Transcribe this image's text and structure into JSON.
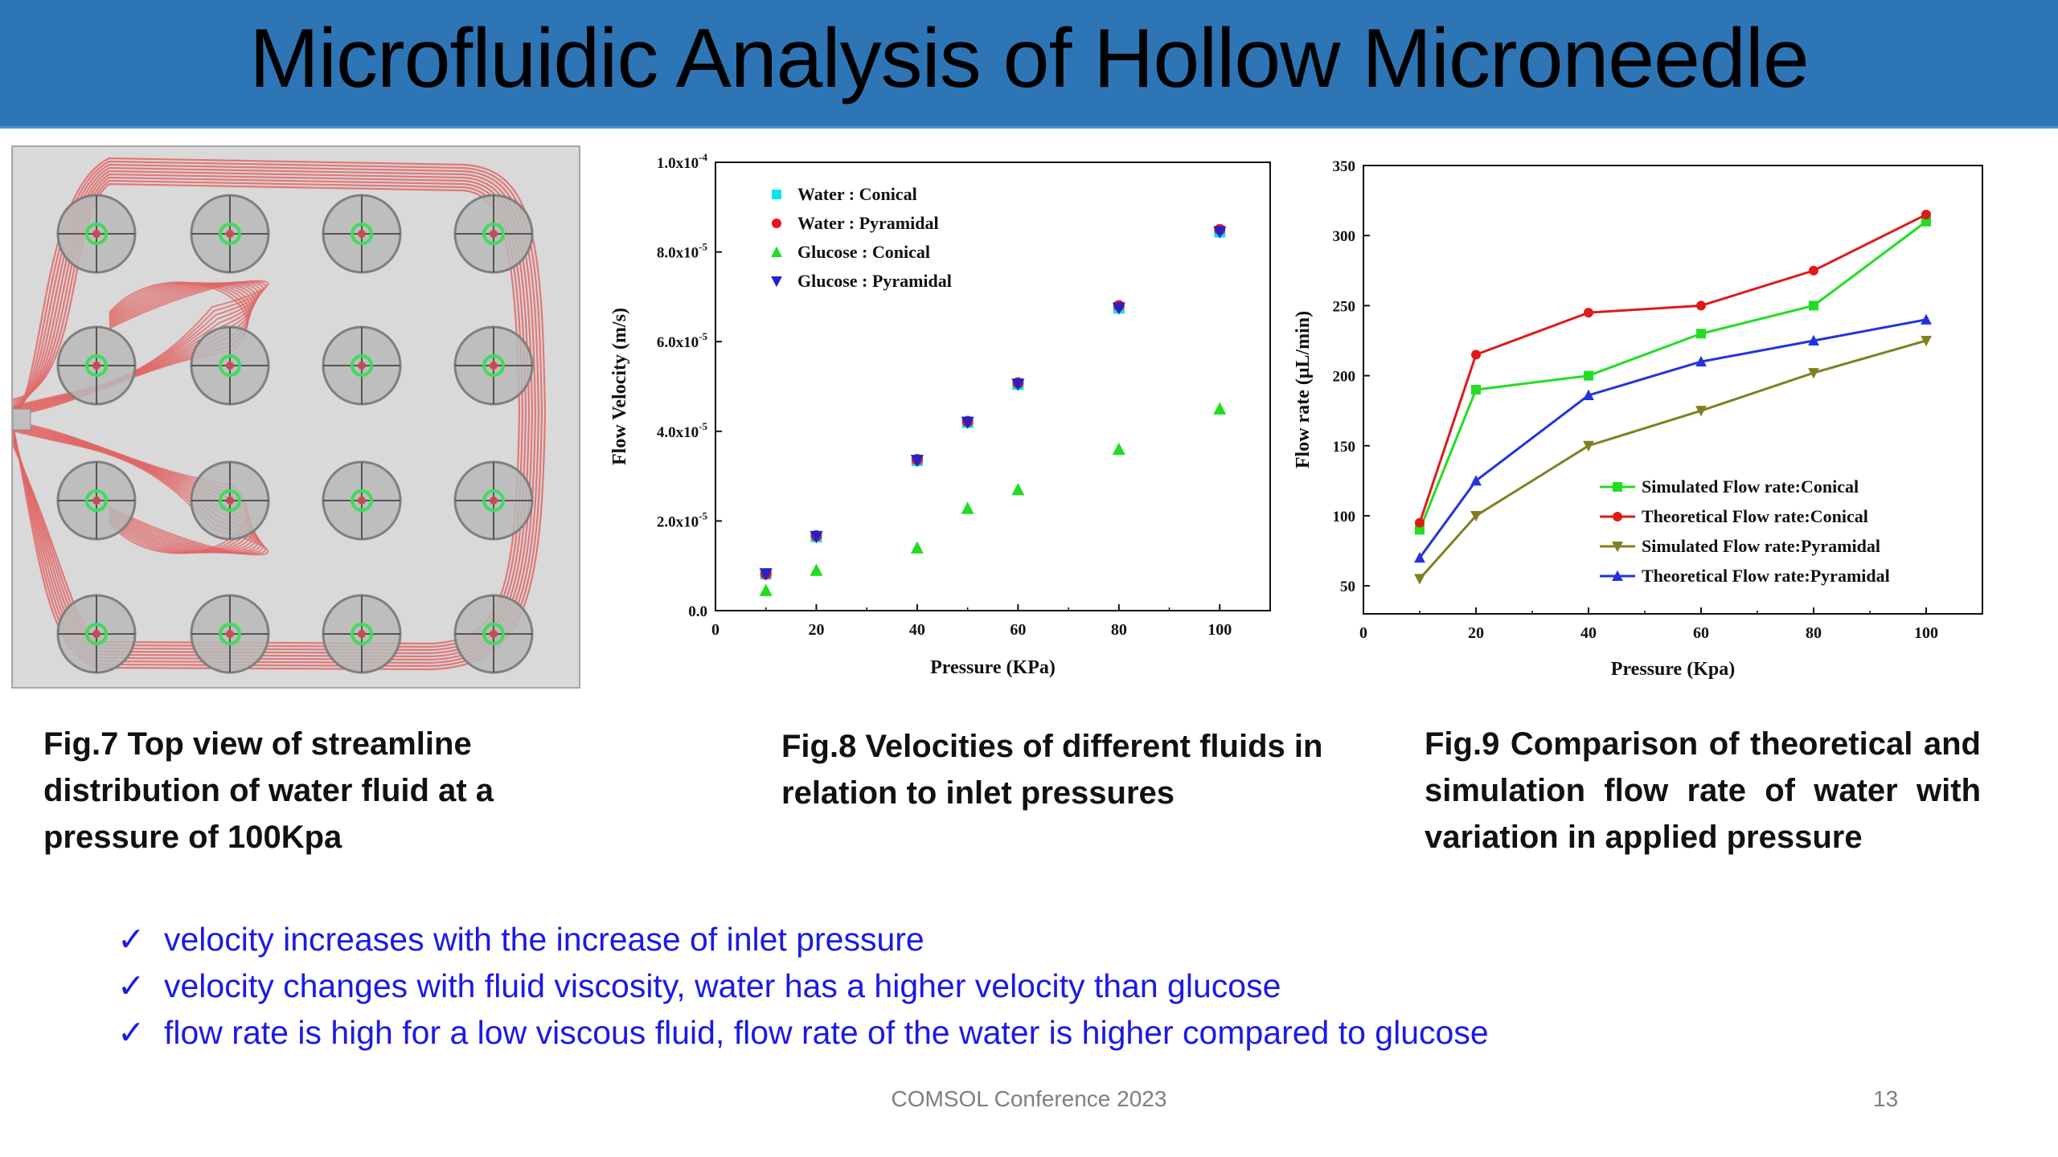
{
  "slide": {
    "title": "Microfluidic Analysis of Hollow Microneedle",
    "footer": "COMSOL Conference 2023",
    "page_number": "13",
    "colors": {
      "title_bar": "#2e75b6",
      "bullet_text": "#1a1ae6",
      "streamline": "#e06666"
    }
  },
  "captions": {
    "fig7": "Fig.7 Top view of streamline distribution of water fluid at a pressure of 100Kpa",
    "fig8": "Fig.8 Velocities of different fluids in relation to inlet pressures",
    "fig9": "Fig.9 Comparison of theoretical and simulation flow rate of water with variation in applied pressure"
  },
  "bullets": [
    "velocity increases with the increase of inlet pressure",
    "velocity changes with fluid viscosity, water has a higher velocity than glucose",
    "flow rate is high for a low viscous fluid, flow rate of the water is higher compared to glucose"
  ],
  "bullet_icon": "check-icon",
  "chart_data": [
    {
      "type": "scatter",
      "xlabel": "Pressure (KPa)",
      "ylabel": "Flow Velocity (m/s)",
      "xlim": [
        0,
        110
      ],
      "ylim": [
        0,
        0.0001
      ],
      "xticks": [
        "0",
        "20",
        "40",
        "60",
        "80",
        "100"
      ],
      "xtick_values": [
        0,
        20,
        40,
        60,
        80,
        100
      ],
      "yticks": [
        "0.0",
        "2.0x10-5",
        "4.0x10-5",
        "6.0x10-5",
        "8.0x10-5",
        "1.0x10-4"
      ],
      "ytick_values": [
        0,
        2e-05,
        4e-05,
        6e-05,
        8e-05,
        0.0001
      ],
      "legend_position": "top-left",
      "x": [
        10,
        20,
        40,
        50,
        60,
        80,
        100
      ],
      "series": [
        {
          "name": "Water : Conical",
          "marker": "square",
          "color": "#00e5ee",
          "values": [
            8.2e-06,
            1.65e-05,
            3.35e-05,
            4.2e-05,
            5.05e-05,
            6.75e-05,
            8.45e-05
          ]
        },
        {
          "name": "Water : Pyramidal",
          "marker": "circle",
          "color": "#e8141c",
          "values": [
            8.2e-06,
            1.67e-05,
            3.37e-05,
            4.22e-05,
            5.08e-05,
            6.8e-05,
            8.5e-05
          ]
        },
        {
          "name": "Glucose : Conical",
          "marker": "triangle-up",
          "color": "#22dd22",
          "values": [
            4.5e-06,
            9e-06,
            1.4e-05,
            2.28e-05,
            2.7e-05,
            3.6e-05,
            4.5e-05
          ]
        },
        {
          "name": "Glucose : Pyramidal",
          "marker": "triangle-down",
          "color": "#2222cc",
          "values": [
            8.2e-06,
            1.65e-05,
            3.35e-05,
            4.2e-05,
            5.05e-05,
            6.75e-05,
            8.45e-05
          ]
        }
      ]
    },
    {
      "type": "line",
      "xlabel": "Pressure (Kpa)",
      "ylabel": "Flow rate (μL/min)",
      "xlim": [
        0,
        110
      ],
      "ylim": [
        30,
        350
      ],
      "xticks": [
        "0",
        "20",
        "40",
        "60",
        "80",
        "100"
      ],
      "xtick_values": [
        0,
        20,
        40,
        60,
        80,
        100
      ],
      "yticks": [
        "50",
        "100",
        "150",
        "200",
        "250",
        "300",
        "350"
      ],
      "ytick_values": [
        50,
        100,
        150,
        200,
        250,
        300,
        350
      ],
      "legend_position": "bottom-right",
      "x": [
        10,
        20,
        40,
        60,
        80,
        100
      ],
      "series": [
        {
          "name": "Simulated Flow rate:Conical",
          "marker": "square",
          "color": "#22dd22",
          "values": [
            90,
            190,
            200,
            230,
            250,
            310
          ]
        },
        {
          "name": "Theoretical Flow rate:Conical",
          "marker": "circle",
          "color": "#dd1a1a",
          "values": [
            95,
            215,
            245,
            250,
            275,
            315
          ]
        },
        {
          "name": "Simulated Flow rate:Pyramidal",
          "marker": "triangle-down",
          "color": "#808020",
          "values": [
            55,
            100,
            150,
            175,
            202,
            225
          ]
        },
        {
          "name": "Theoretical Flow rate:Pyramidal",
          "marker": "triangle-up",
          "color": "#2233dd",
          "values": [
            70,
            125,
            186,
            210,
            225,
            240
          ]
        }
      ]
    }
  ]
}
